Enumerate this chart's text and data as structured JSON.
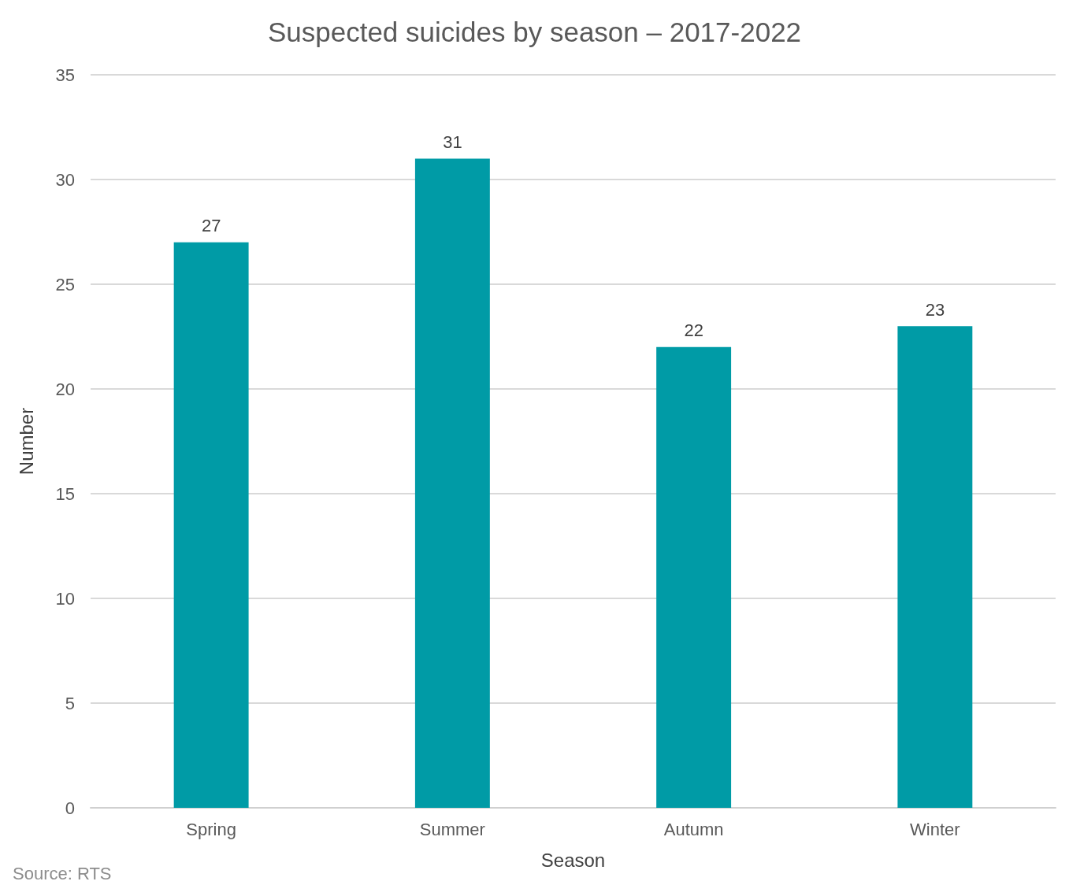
{
  "chart_data": {
    "type": "bar",
    "title": "Suspected suicides by season – 2017-2022",
    "xlabel": "Season",
    "ylabel": "Number",
    "categories": [
      "Spring",
      "Summer",
      "Autumn",
      "Winter"
    ],
    "values": [
      27,
      31,
      22,
      23
    ],
    "color": "#009ba6",
    "ylim": [
      0,
      35
    ],
    "yticks": [
      0,
      5,
      10,
      15,
      20,
      25,
      30,
      35
    ],
    "grid": "y",
    "data_labels": true,
    "annotations": [
      "Source: RTS"
    ]
  }
}
